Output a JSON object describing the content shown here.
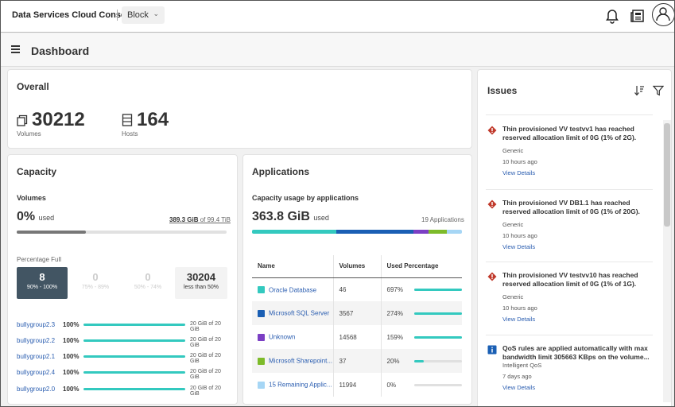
{
  "app": {
    "title": "Data Services Cloud Console",
    "selector": "Block"
  },
  "page": {
    "title": "Dashboard"
  },
  "overall": {
    "title": "Overall",
    "volumes": {
      "value": "30212",
      "label": "Volumes"
    },
    "hosts": {
      "value": "164",
      "label": "Hosts"
    }
  },
  "capacity": {
    "title": "Capacity",
    "volumes_label": "Volumes",
    "used_value": "0%",
    "used_suffix": "used",
    "of_used": "389.3 GiB",
    "of_total": "of 99.4 TiB",
    "used_fraction": 0.33,
    "percentage_full_label": "Percentage Full",
    "tiles": [
      {
        "value": "8",
        "label": "90% - 100%"
      },
      {
        "value": "0",
        "label": "75% - 89%"
      },
      {
        "value": "0",
        "label": "50% - 74%"
      },
      {
        "value": "30204",
        "label": "less than 50%"
      }
    ],
    "groups": [
      {
        "name": "bullygroup2.3",
        "pct": "100%",
        "size": "20 GiB of 20 GiB"
      },
      {
        "name": "bullygroup2.2",
        "pct": "100%",
        "size": "20 GiB of 20 GiB"
      },
      {
        "name": "bullygroup2.1",
        "pct": "100%",
        "size": "20 GiB of 20 GiB"
      },
      {
        "name": "bullygroup2.4",
        "pct": "100%",
        "size": "20 GiB of 20 GiB"
      },
      {
        "name": "bullygroup2.0",
        "pct": "100%",
        "size": "20 GiB of 20 GiB"
      }
    ]
  },
  "applications": {
    "title": "Applications",
    "subtitle": "Capacity usage by applications",
    "total": "363.8 GiB",
    "total_suffix": "used",
    "count": "19 Applications",
    "columns": {
      "name": "Name",
      "volumes": "Volumes",
      "used": "Used Percentage"
    },
    "rows": [
      {
        "name": "Oracle Database",
        "volumes": "46",
        "used": "697%",
        "fraction": 1.0,
        "color": "#33c9bf"
      },
      {
        "name": "Microsoft SQL Server",
        "volumes": "3567",
        "used": "274%",
        "fraction": 1.0,
        "color": "#1a5fb4"
      },
      {
        "name": "Unknown",
        "volumes": "14568",
        "used": "159%",
        "fraction": 1.0,
        "color": "#7b3fc4"
      },
      {
        "name": "Microsoft Sharepoint...",
        "volumes": "37",
        "used": "20%",
        "fraction": 0.2,
        "color": "#7dbb2a"
      },
      {
        "name": "15 Remaining Applic...",
        "volumes": "11994",
        "used": "0%",
        "fraction": 0.0,
        "color": "#a6d6f5"
      }
    ],
    "stack_colors": [
      "#33c9bf",
      "#1a5fb4",
      "#7b3fc4",
      "#7dbb2a",
      "#a6d6f5"
    ],
    "stack_shares": [
      0.4,
      0.37,
      0.07,
      0.09,
      0.07
    ]
  },
  "issues": {
    "title": "Issues",
    "items": [
      {
        "type": "error",
        "title": "Thin provisioned VV testvv1 has reached reserved allocation limit of 0G (1% of 2G).",
        "category": "Generic",
        "time": "10 hours ago",
        "link": "View Details"
      },
      {
        "type": "error",
        "title": "Thin provisioned VV DB1.1 has reached reserved allocation limit of 0G (1% of 20G).",
        "category": "Generic",
        "time": "10 hours ago",
        "link": "View Details"
      },
      {
        "type": "error",
        "title": "Thin provisioned VV testvv10 has reached reserved allocation limit of 0G (1% of 1G).",
        "category": "Generic",
        "time": "10 hours ago",
        "link": "View Details"
      },
      {
        "type": "info",
        "title": "QoS rules are applied automatically with max bandwidth limit 305663 KBps on the volume...",
        "category": "Intelligent QoS",
        "time": "7 days ago",
        "link": "View Details"
      }
    ]
  }
}
